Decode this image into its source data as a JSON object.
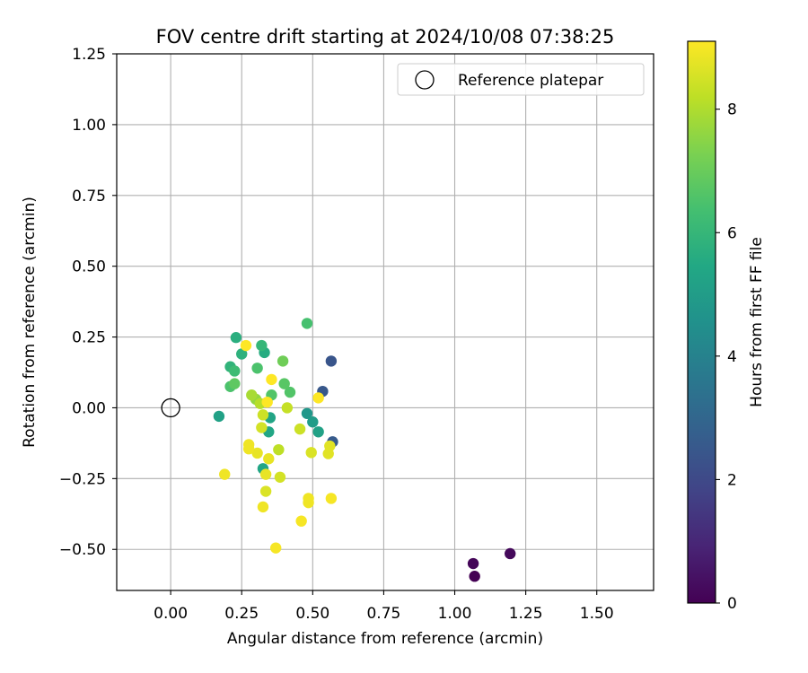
{
  "chart_data": {
    "type": "scatter",
    "title": "FOV centre drift starting at 2024/10/08 07:38:25",
    "xlabel": "Angular distance from reference (arcmin)",
    "ylabel": "Rotation from reference (arcmin)",
    "xlim": [
      -0.19,
      1.7
    ],
    "ylim": [
      -0.645,
      1.25
    ],
    "x_ticks": [
      "0.00",
      "0.25",
      "0.50",
      "0.75",
      "1.00",
      "1.25",
      "1.50"
    ],
    "x_tick_values": [
      0.0,
      0.25,
      0.5,
      0.75,
      1.0,
      1.25,
      1.5
    ],
    "y_ticks": [
      "1.25",
      "1.00",
      "0.75",
      "0.50",
      "0.25",
      "0.00",
      "−0.25",
      "−0.50"
    ],
    "y_tick_values": [
      1.25,
      1.0,
      0.75,
      0.5,
      0.25,
      0.0,
      -0.25,
      -0.5
    ],
    "grid": true,
    "legend": {
      "placement": "top-right",
      "entries": [
        {
          "label": "Reference platepar",
          "marker": "open-circle",
          "color": "#000000"
        }
      ]
    },
    "reference_point": {
      "x": 0.0,
      "y": 0.0
    },
    "colorbar": {
      "label": "Hours from first FF file",
      "range": [
        0,
        9.1
      ],
      "ticks": [
        "0",
        "2",
        "4",
        "6",
        "8"
      ],
      "tick_values": [
        0,
        2,
        4,
        6,
        8
      ],
      "colormap": "viridis"
    },
    "points": [
      {
        "x": 1.07,
        "y": -0.595,
        "c": 0.0
      },
      {
        "x": 1.065,
        "y": -0.55,
        "c": 0.1
      },
      {
        "x": 1.195,
        "y": -0.515,
        "c": 0.2
      },
      {
        "x": 0.565,
        "y": 0.165,
        "c": 2.4
      },
      {
        "x": 0.535,
        "y": 0.058,
        "c": 2.5
      },
      {
        "x": 0.57,
        "y": -0.12,
        "c": 2.6
      },
      {
        "x": 0.48,
        "y": -0.02,
        "c": 4.8
      },
      {
        "x": 0.5,
        "y": -0.05,
        "c": 5.0
      },
      {
        "x": 0.52,
        "y": -0.085,
        "c": 5.2
      },
      {
        "x": 0.17,
        "y": -0.03,
        "c": 5.2
      },
      {
        "x": 0.35,
        "y": -0.035,
        "c": 5.3
      },
      {
        "x": 0.345,
        "y": -0.085,
        "c": 5.4
      },
      {
        "x": 0.325,
        "y": -0.215,
        "c": 5.4
      },
      {
        "x": 0.33,
        "y": 0.195,
        "c": 5.6
      },
      {
        "x": 0.23,
        "y": 0.248,
        "c": 5.7
      },
      {
        "x": 0.25,
        "y": 0.19,
        "c": 5.8
      },
      {
        "x": 0.21,
        "y": 0.145,
        "c": 5.9
      },
      {
        "x": 0.32,
        "y": 0.22,
        "c": 6.0
      },
      {
        "x": 0.225,
        "y": 0.13,
        "c": 6.2
      },
      {
        "x": 0.48,
        "y": 0.298,
        "c": 6.4
      },
      {
        "x": 0.305,
        "y": 0.14,
        "c": 6.5
      },
      {
        "x": 0.21,
        "y": 0.075,
        "c": 6.5
      },
      {
        "x": 0.355,
        "y": 0.045,
        "c": 6.6
      },
      {
        "x": 0.42,
        "y": 0.055,
        "c": 6.6
      },
      {
        "x": 0.4,
        "y": 0.085,
        "c": 6.7
      },
      {
        "x": 0.225,
        "y": 0.085,
        "c": 6.8
      },
      {
        "x": 0.395,
        "y": 0.165,
        "c": 7.1
      },
      {
        "x": 0.3,
        "y": 0.03,
        "c": 7.6
      },
      {
        "x": 0.285,
        "y": 0.045,
        "c": 7.9
      },
      {
        "x": 0.315,
        "y": 0.015,
        "c": 8.1
      },
      {
        "x": 0.38,
        "y": -0.148,
        "c": 8.2
      },
      {
        "x": 0.41,
        "y": 0.0,
        "c": 8.3
      },
      {
        "x": 0.325,
        "y": -0.025,
        "c": 8.4
      },
      {
        "x": 0.455,
        "y": -0.075,
        "c": 8.4
      },
      {
        "x": 0.32,
        "y": -0.07,
        "c": 8.5
      },
      {
        "x": 0.385,
        "y": -0.245,
        "c": 8.5
      },
      {
        "x": 0.335,
        "y": -0.295,
        "c": 8.6
      },
      {
        "x": 0.495,
        "y": -0.158,
        "c": 8.6
      },
      {
        "x": 0.555,
        "y": -0.162,
        "c": 8.7
      },
      {
        "x": 0.56,
        "y": -0.135,
        "c": 8.7
      },
      {
        "x": 0.335,
        "y": -0.235,
        "c": 8.8
      },
      {
        "x": 0.345,
        "y": -0.18,
        "c": 8.8
      },
      {
        "x": 0.305,
        "y": -0.16,
        "c": 8.8
      },
      {
        "x": 0.275,
        "y": -0.145,
        "c": 8.9
      },
      {
        "x": 0.275,
        "y": -0.13,
        "c": 8.9
      },
      {
        "x": 0.19,
        "y": -0.235,
        "c": 8.9
      },
      {
        "x": 0.325,
        "y": -0.35,
        "c": 8.9
      },
      {
        "x": 0.485,
        "y": -0.32,
        "c": 8.9
      },
      {
        "x": 0.485,
        "y": -0.335,
        "c": 8.9
      },
      {
        "x": 0.565,
        "y": -0.32,
        "c": 9.0
      },
      {
        "x": 0.46,
        "y": -0.4,
        "c": 9.0
      },
      {
        "x": 0.37,
        "y": -0.495,
        "c": 9.0
      },
      {
        "x": 0.265,
        "y": 0.22,
        "c": 9.1
      },
      {
        "x": 0.355,
        "y": 0.1,
        "c": 9.1
      },
      {
        "x": 0.52,
        "y": 0.035,
        "c": 9.1
      },
      {
        "x": 0.34,
        "y": 0.02,
        "c": 9.1
      }
    ]
  }
}
